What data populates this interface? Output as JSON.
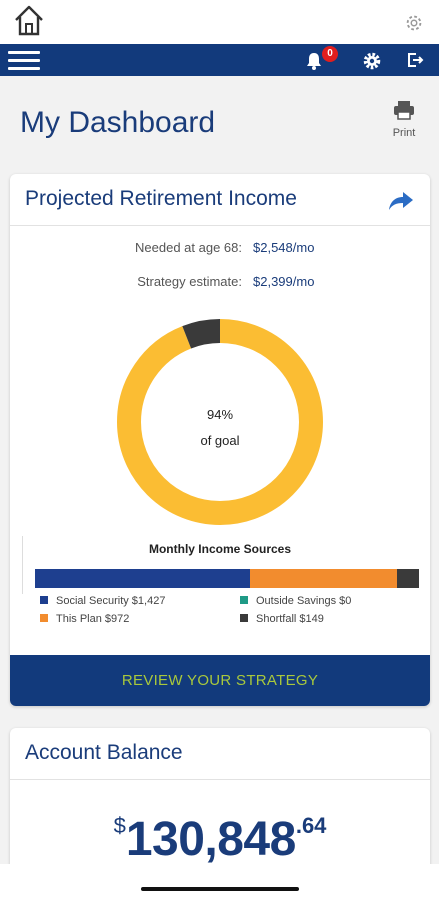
{
  "header": {
    "notification_count": "0",
    "print_label": "Print"
  },
  "page": {
    "title": "My Dashboard"
  },
  "retirement": {
    "title": "Projected Retirement Income",
    "needed_label": "Needed at age 68:",
    "needed_value": "$2,548/mo",
    "estimate_label": "Strategy estimate:",
    "estimate_value": "$2,399/mo",
    "goal_percent": "94%",
    "goal_label": "of goal",
    "goal_fraction": 0.94,
    "sources_title": "Monthly Income Sources",
    "sources": [
      {
        "label": "Social Security $1,427",
        "amount": 1427,
        "color": "#1e3f8f"
      },
      {
        "label": "This Plan $972",
        "amount": 972,
        "color": "#f28c2e"
      },
      {
        "label": "Outside Savings $0",
        "amount": 0,
        "color": "#1f9a86"
      },
      {
        "label": "Shortfall $149",
        "amount": 149,
        "color": "#3a3a3a"
      }
    ],
    "cta_label": "REVIEW YOUR STRATEGY"
  },
  "balance": {
    "title": "Account Balance",
    "currency": "$",
    "main": "130,848",
    "cents": ".64"
  },
  "colors": {
    "brand_navy": "#123a7c",
    "donut_gold": "#fbbd33",
    "donut_shortfall": "#3a3a3a",
    "cta_text": "#a8c83c"
  }
}
